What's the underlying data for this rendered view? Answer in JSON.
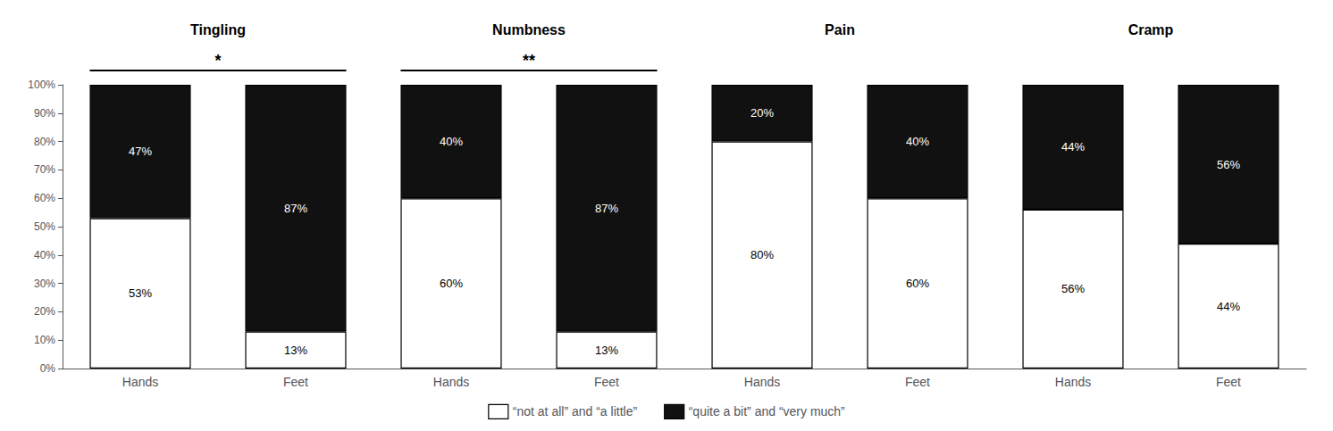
{
  "chart_data": {
    "type": "bar",
    "stacked": true,
    "data_labels": true,
    "grid": false,
    "legend": "bottom",
    "categories": [
      "Hands",
      "Feet",
      "Hands",
      "Feet",
      "Hands",
      "Feet",
      "Hands",
      "Feet"
    ],
    "groups": [
      "Tingling",
      "Numbness",
      "Pain",
      "Cramp"
    ],
    "significance": [
      {
        "group": "Tingling",
        "text": "*"
      },
      {
        "group": "Numbness",
        "text": "**"
      }
    ],
    "series": [
      {
        "name": "“not at all” and “a little”",
        "color": "#ffffff",
        "values": [
          53,
          13,
          60,
          13,
          80,
          60,
          56,
          44
        ],
        "value_labels": [
          "53%",
          "13%",
          "60%",
          "13%",
          "80%",
          "60%",
          "56%",
          "44%"
        ]
      },
      {
        "name": "“quite a bit” and “very much”",
        "color": "#111111",
        "values": [
          47,
          87,
          40,
          87,
          20,
          40,
          44,
          56
        ],
        "value_labels": [
          "47%",
          "87%",
          "40%",
          "87%",
          "20%",
          "40%",
          "44%",
          "56%"
        ]
      }
    ],
    "ylim": [
      0,
      100
    ],
    "yticks": [
      {
        "value": 0,
        "label": "0%"
      },
      {
        "value": 10,
        "label": "10%"
      },
      {
        "value": 20,
        "label": "20%"
      },
      {
        "value": 30,
        "label": "30%"
      },
      {
        "value": 40,
        "label": "40%"
      },
      {
        "value": 50,
        "label": "50%"
      },
      {
        "value": 60,
        "label": "60%"
      },
      {
        "value": 70,
        "label": "70%"
      },
      {
        "value": 80,
        "label": "80%"
      },
      {
        "value": 90,
        "label": "90%"
      },
      {
        "value": 100,
        "label": "100%"
      }
    ]
  }
}
